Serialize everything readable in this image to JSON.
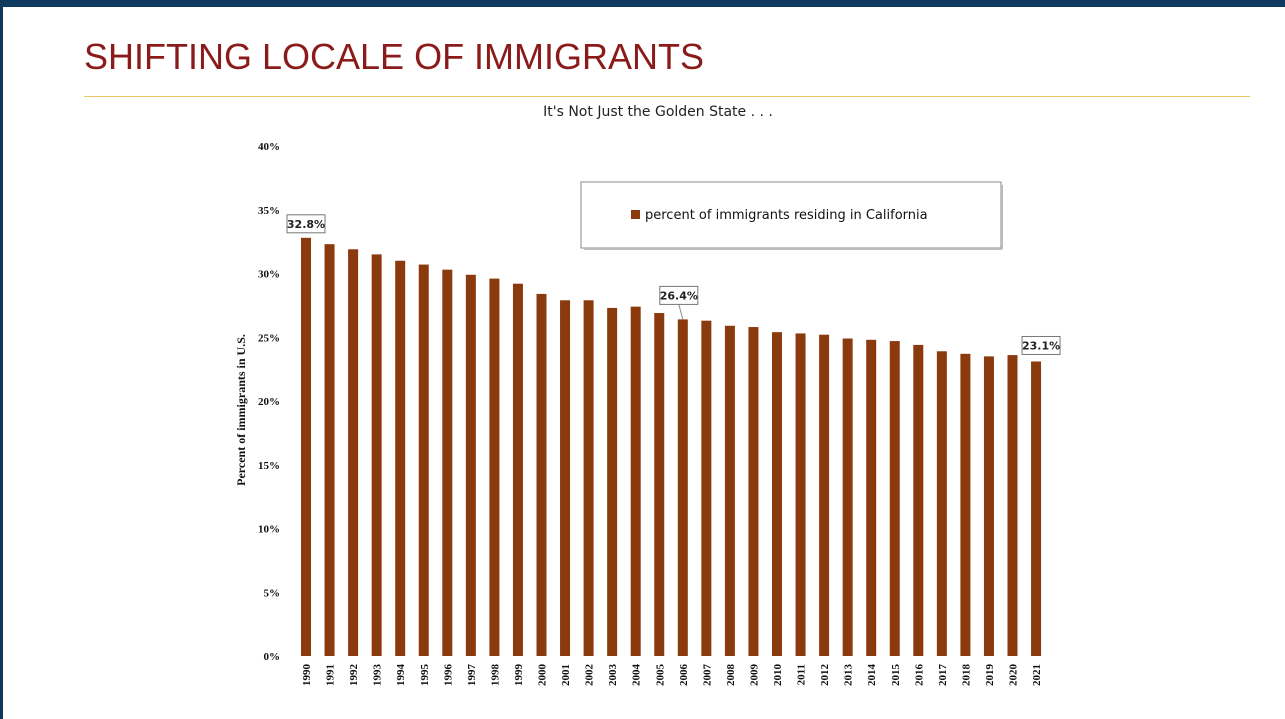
{
  "slide": {
    "title": "SHIFTING LOCALE OF IMMIGRANTS"
  },
  "colors": {
    "bar": "#8b3a0e",
    "title": "#8b1a1a",
    "top_bar": "#0e3a5f",
    "rule": "#e8c66a"
  },
  "chart_data": {
    "type": "bar",
    "title": "It's Not Just the Golden State . . .",
    "xlabel": "",
    "ylabel": "Percent of immigrants in U.S.",
    "ylim": [
      0,
      40
    ],
    "y_ticks": [
      "0%",
      "5%",
      "10%",
      "15%",
      "20%",
      "25%",
      "30%",
      "35%",
      "40%"
    ],
    "categories": [
      "1990",
      "1991",
      "1992",
      "1993",
      "1994",
      "1995",
      "1996",
      "1997",
      "1998",
      "1999",
      "2000",
      "2001",
      "2002",
      "2003",
      "2004",
      "2005",
      "2006",
      "2007",
      "2008",
      "2009",
      "2010",
      "2011",
      "2012",
      "2013",
      "2014",
      "2015",
      "2016",
      "2017",
      "2018",
      "2019",
      "2020",
      "2021"
    ],
    "series": [
      {
        "name": "percent of immigrants residing in California",
        "values": [
          32.8,
          32.3,
          31.9,
          31.5,
          31.0,
          30.7,
          30.3,
          29.9,
          29.6,
          29.2,
          28.4,
          27.9,
          27.9,
          27.3,
          27.4,
          26.9,
          26.4,
          26.3,
          25.9,
          25.8,
          25.4,
          25.3,
          25.2,
          24.9,
          24.8,
          24.7,
          24.4,
          23.9,
          23.7,
          23.5,
          23.6,
          23.1
        ]
      }
    ],
    "data_labels": [
      {
        "category": "1990",
        "text": "32.8%"
      },
      {
        "category": "2006",
        "text": "26.4%"
      },
      {
        "category": "2021",
        "text": "23.1%"
      }
    ],
    "legend_position": "top-right",
    "grid": false
  }
}
